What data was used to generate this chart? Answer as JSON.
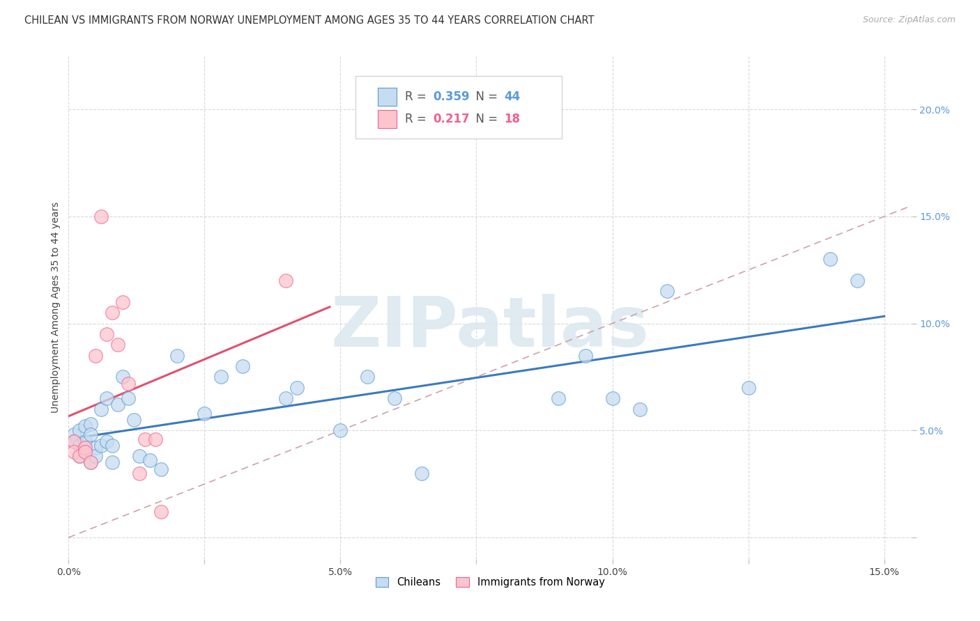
{
  "title": "CHILEAN VS IMMIGRANTS FROM NORWAY UNEMPLOYMENT AMONG AGES 35 TO 44 YEARS CORRELATION CHART",
  "source": "Source: ZipAtlas.com",
  "ylabel": "Unemployment Among Ages 35 to 44 years",
  "xlim": [
    0.0,
    0.155
  ],
  "ylim": [
    -0.01,
    0.225
  ],
  "xticks": [
    0.0,
    0.025,
    0.05,
    0.075,
    0.1,
    0.125,
    0.15
  ],
  "xticklabels": [
    "0.0%",
    "",
    "5.0%",
    "",
    "10.0%",
    "",
    "15.0%"
  ],
  "yticks": [
    0.0,
    0.05,
    0.1,
    0.15,
    0.2
  ],
  "yticklabels": [
    "",
    "5.0%",
    "10.0%",
    "15.0%",
    "20.0%"
  ],
  "chilean_fill": "#c6dcf0",
  "norway_fill": "#fcc5cd",
  "chilean_edge": "#5b9bd5",
  "norway_edge": "#f06090",
  "chilean_line_color": "#3a7abf",
  "norway_line_color": "#e05070",
  "diag_color": "#d0a0a8",
  "legend_R1": "0.359",
  "legend_N1": "44",
  "legend_R2": "0.217",
  "legend_N2": "18",
  "legend_label1": "Chileans",
  "legend_label2": "Immigrants from Norway",
  "watermark_text": "ZIPatlas",
  "chilean_x": [
    0.001,
    0.001,
    0.002,
    0.002,
    0.002,
    0.003,
    0.003,
    0.003,
    0.004,
    0.004,
    0.004,
    0.005,
    0.005,
    0.006,
    0.006,
    0.007,
    0.007,
    0.008,
    0.008,
    0.009,
    0.01,
    0.011,
    0.012,
    0.013,
    0.015,
    0.017,
    0.02,
    0.025,
    0.028,
    0.032,
    0.04,
    0.042,
    0.05,
    0.055,
    0.06,
    0.065,
    0.09,
    0.095,
    0.1,
    0.105,
    0.11,
    0.125,
    0.14,
    0.145
  ],
  "chilean_y": [
    0.048,
    0.045,
    0.05,
    0.043,
    0.038,
    0.052,
    0.045,
    0.04,
    0.053,
    0.048,
    0.035,
    0.042,
    0.038,
    0.06,
    0.043,
    0.065,
    0.045,
    0.035,
    0.043,
    0.062,
    0.075,
    0.065,
    0.055,
    0.038,
    0.036,
    0.032,
    0.085,
    0.058,
    0.075,
    0.08,
    0.065,
    0.07,
    0.05,
    0.075,
    0.065,
    0.03,
    0.065,
    0.085,
    0.065,
    0.06,
    0.115,
    0.07,
    0.13,
    0.12
  ],
  "norway_x": [
    0.001,
    0.001,
    0.002,
    0.003,
    0.003,
    0.004,
    0.005,
    0.006,
    0.007,
    0.008,
    0.009,
    0.01,
    0.011,
    0.013,
    0.014,
    0.016,
    0.017,
    0.04
  ],
  "norway_y": [
    0.045,
    0.04,
    0.038,
    0.042,
    0.04,
    0.035,
    0.085,
    0.15,
    0.095,
    0.105,
    0.09,
    0.11,
    0.072,
    0.03,
    0.046,
    0.046,
    0.012,
    0.12
  ]
}
